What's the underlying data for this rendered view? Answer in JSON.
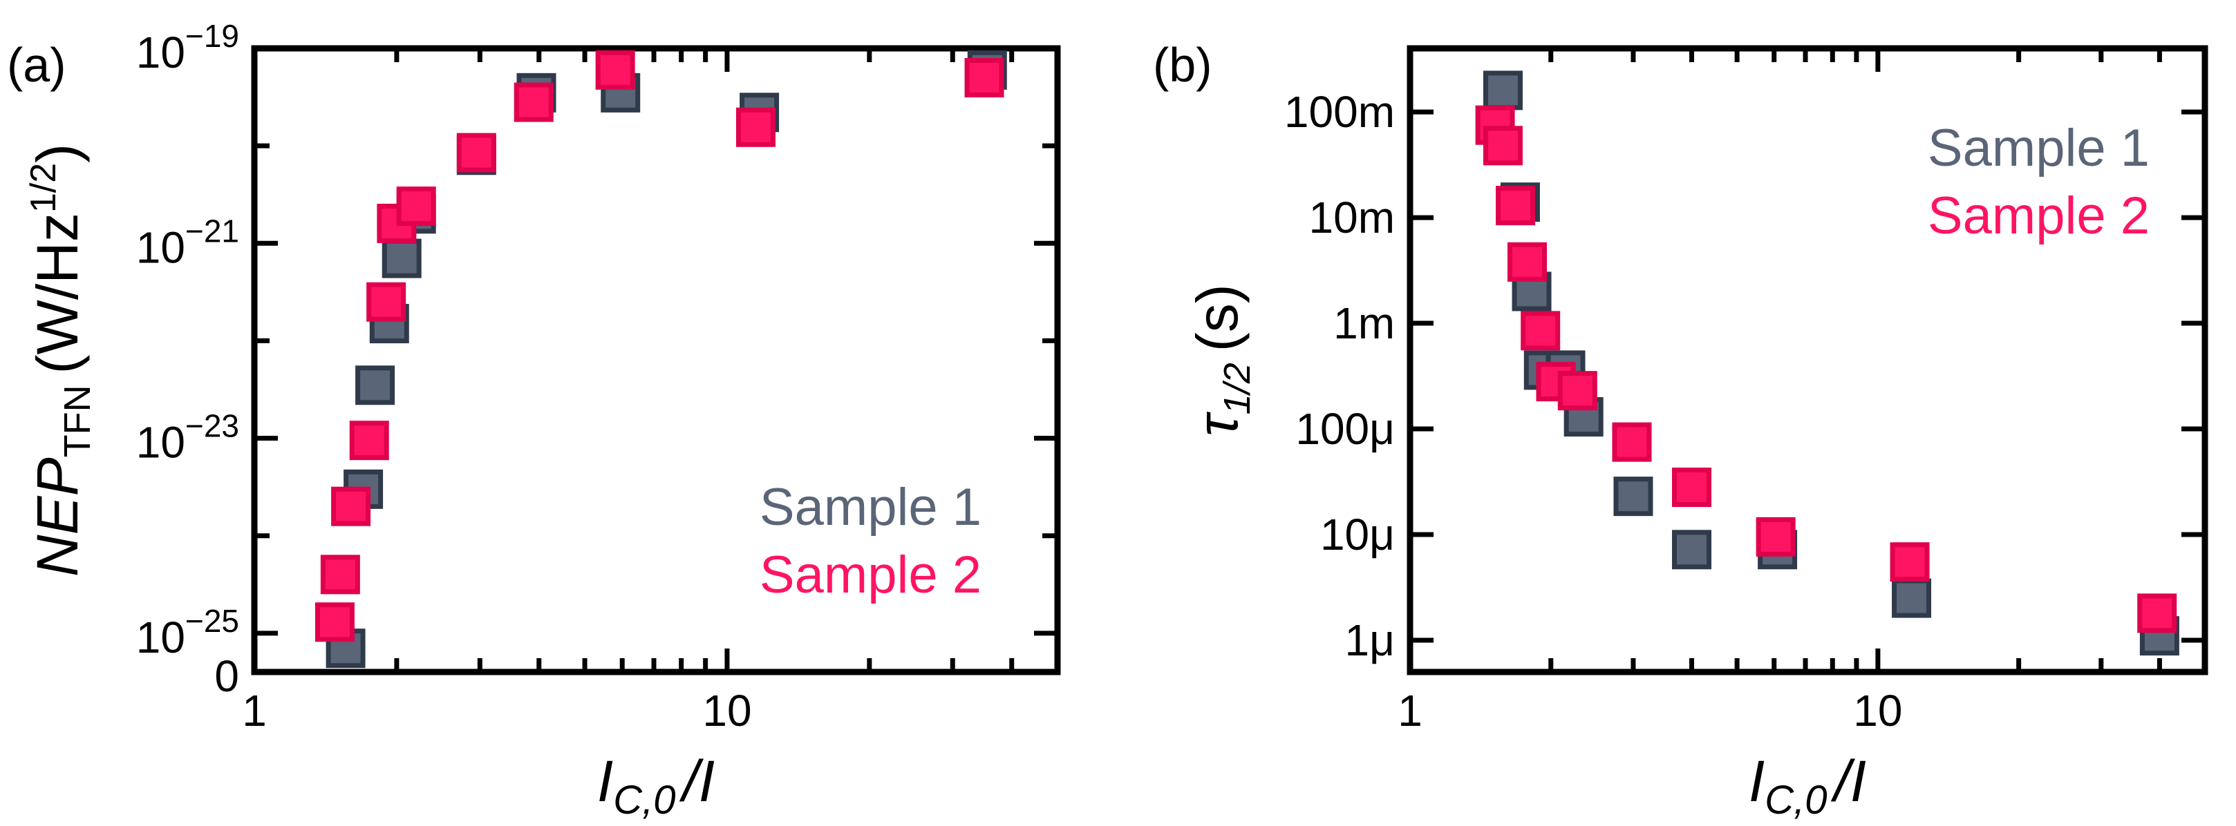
{
  "colors": {
    "sample1": "#5a6578",
    "sample1_edge": "#2f3a4b",
    "sample2": "#ff1463",
    "sample2_edge": "#e0004c"
  },
  "chart_data": [
    {
      "type": "scatter",
      "panel": "(a)",
      "xlabel_main": "I",
      "xlabel_sub": "C,0",
      "xlabel_tail": "/I",
      "ylabel_main": "NEP",
      "ylabel_sub": "TFN",
      "ylabel_unit": "(W/Hz",
      "ylabel_unit_exp": "1/2",
      "ylabel_unit_close": ")",
      "xscale": "log",
      "xlim": [
        1,
        50
      ],
      "yscale": "log",
      "ylim": [
        4e-26,
        1e-19
      ],
      "x_ticks": [
        {
          "v": 1,
          "label": "1"
        },
        {
          "v": 10,
          "label": "10"
        }
      ],
      "y_ticks": [
        {
          "v": 1e-19,
          "base": "10",
          "exp": "−19"
        },
        {
          "v": 1e-21,
          "base": "10",
          "exp": "−21"
        },
        {
          "v": 1e-23,
          "base": "10",
          "exp": "−23"
        },
        {
          "v": 1e-25,
          "base": "10",
          "exp": "−25"
        }
      ],
      "y_zero_label": "0",
      "legend_position": "bottom-right",
      "series": [
        {
          "name": "Sample 1",
          "color_key": "sample1",
          "x": [
            1.56,
            1.7,
            1.8,
            1.93,
            2.05,
            2.2,
            2.95,
            3.95,
            5.95,
            11.7,
            35.5
          ],
          "y": [
            7e-26,
            3e-24,
            3.5e-23,
            1.5e-22,
            7e-22,
            2e-21,
            8e-21,
            3.5e-20,
            3.5e-20,
            2.2e-20,
            6e-20
          ]
        },
        {
          "name": "Sample 2",
          "color_key": "sample2",
          "x": [
            1.48,
            1.52,
            1.6,
            1.75,
            1.9,
            2.0,
            2.2,
            2.95,
            3.9,
            5.8,
            11.5,
            35.0
          ],
          "y": [
            1.3e-25,
            4e-25,
            2e-24,
            9.5e-24,
            2.5e-22,
            1.6e-21,
            2.4e-21,
            8.5e-21,
            2.8e-20,
            6e-20,
            1.55e-20,
            5e-20
          ]
        }
      ]
    },
    {
      "type": "scatter",
      "panel": "(b)",
      "xlabel_main": "I",
      "xlabel_sub": "C,0",
      "xlabel_tail": "/I",
      "ylabel_main": "τ",
      "ylabel_sub": "1/2",
      "ylabel_unit": "(s)",
      "xscale": "log",
      "xlim": [
        1,
        50
      ],
      "yscale": "log",
      "ylim": [
        5e-07,
        0.4
      ],
      "x_ticks": [
        {
          "v": 1,
          "label": "1"
        },
        {
          "v": 10,
          "label": "10"
        }
      ],
      "y_ticks": [
        {
          "v": 0.1,
          "label": "100m"
        },
        {
          "v": 0.01,
          "label": "10m"
        },
        {
          "v": 0.001,
          "label": "1m"
        },
        {
          "v": 0.0001,
          "label": "100μ"
        },
        {
          "v": 1e-05,
          "label": "10μ"
        },
        {
          "v": 1e-06,
          "label": "1μ"
        }
      ],
      "legend_position": "top-right",
      "series": [
        {
          "name": "Sample 1",
          "color_key": "sample1",
          "x": [
            1.58,
            1.72,
            1.82,
            1.93,
            2.15,
            2.35,
            3.0,
            4.0,
            6.1,
            11.8,
            40.0
          ],
          "y": [
            0.16,
            0.014,
            0.002,
            0.00036,
            0.00036,
            0.00013,
            2.3e-05,
            7.2e-06,
            7.2e-06,
            2.5e-06,
            1.1e-06
          ]
        },
        {
          "name": "Sample 2",
          "color_key": "sample2",
          "x": [
            1.52,
            1.58,
            1.68,
            1.78,
            1.9,
            2.05,
            2.28,
            2.98,
            4.0,
            6.05,
            11.7,
            39.5
          ],
          "y": [
            0.075,
            0.048,
            0.013,
            0.0038,
            0.00085,
            0.00028,
            0.00023,
            7.5e-05,
            2.8e-05,
            9.5e-06,
            5.5e-06,
            1.8e-06
          ]
        }
      ]
    }
  ]
}
